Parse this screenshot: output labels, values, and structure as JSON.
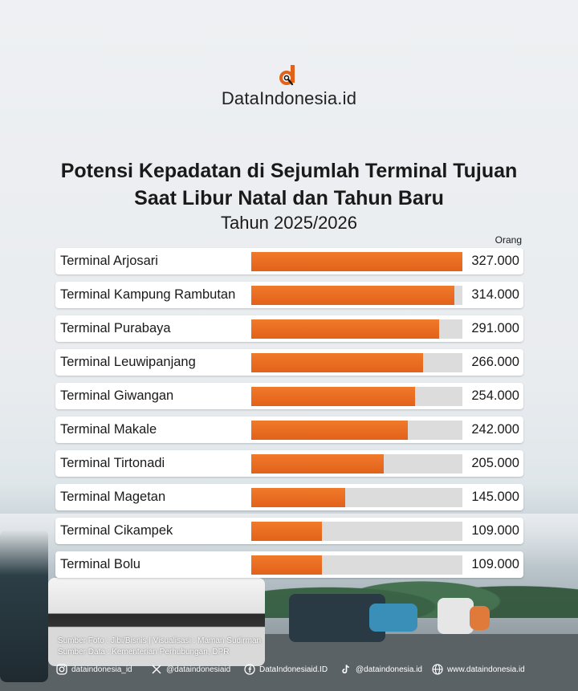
{
  "brand": {
    "name": "DataIndonesia.id",
    "accent": "#e2621a"
  },
  "chart_data": {
    "type": "bar",
    "orientation": "horizontal",
    "title_line1": "Potensi Kepadatan di Sejumlah Terminal Tujuan",
    "title_line2": "Saat Libur Natal dan Tahun Baru",
    "subtitle": "Tahun 2025/2026",
    "unit": "Orang",
    "xlim": [
      0,
      327000
    ],
    "categories": [
      "Terminal Arjosari",
      "Terminal Kampung Rambutan",
      "Terminal Purabaya",
      "Terminal Leuwipanjang",
      "Terminal Giwangan",
      "Terminal Makale",
      "Terminal Tirtonadi",
      "Terminal Magetan",
      "Terminal Cikampek",
      "Terminal Bolu"
    ],
    "values": [
      327000,
      314000,
      291000,
      266000,
      254000,
      242000,
      205000,
      145000,
      109000,
      109000
    ],
    "value_labels": [
      "327.000",
      "314.000",
      "291.000",
      "266.000",
      "254.000",
      "242.000",
      "205.000",
      "145.000",
      "109.000",
      "109.000"
    ],
    "bar_color": "#e2621a",
    "track_color": "#dcdcdc"
  },
  "credits": {
    "line1": "Sumber Foto : Jibi/Bisnis | Visualisasi : Maman Sudirman",
    "line2": "Sumber Data : Kementerian Perhubungan, DPR"
  },
  "footer": {
    "instagram": "dataindonesia_id",
    "x": "@dataindonesiaid",
    "facebook": "DataIndonesiaid.ID",
    "tiktok": "@dataindonesia.id",
    "web": "www.dataindonesia.id"
  }
}
